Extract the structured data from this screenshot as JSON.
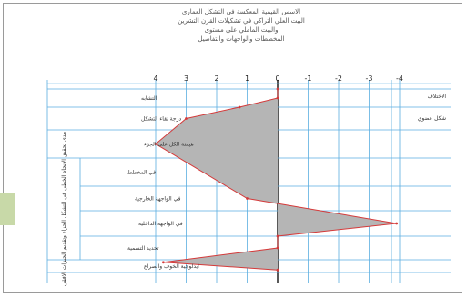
{
  "header": {
    "lines": [
      "الاسس القيمية المعكسة في التشكل العماري",
      "البيت العلي التراكي في تشكيلات القرن التشرين",
      "والبيت الماملي على مستوى",
      "المخططات والواجهات والتفاصيل"
    ]
  },
  "chart_data": {
    "type": "area",
    "title": "",
    "x_ticks": [
      "4",
      "3",
      "2",
      "1",
      "0",
      "-1",
      "-2",
      "-3",
      "-4"
    ],
    "xlim": [
      4,
      -4
    ],
    "side_labels": {
      "header_right": "الاختلاف",
      "row_right": "شكل عضوي"
    },
    "categories": [
      "التشابه",
      "درجة نقاء التشكل",
      "هيمنة الكل على الجزء",
      "في المخطط",
      "في الواجهة الخارجية",
      "في الواجهة الداخلية",
      "تحديد التسمية",
      "ايدلوجية الخوف والصراع"
    ],
    "group_label": "مدى تحقيق الانجاه الخطي في التشكل الجزاء وتقديم الحيزات الافقي",
    "colors": {
      "fill": "#b5b5b5",
      "line": "#d43a3a",
      "grid": "#5aaee0",
      "axis": "#111111"
    },
    "series": [
      {
        "points": [
          {
            "value": 0,
            "row": 0.0
          },
          {
            "value": 0,
            "row": 0.5
          },
          {
            "value": 1.25,
            "row": 1.0
          },
          {
            "value": 3.0,
            "row": 1.5
          },
          {
            "value": 4.0,
            "row": 2.5
          },
          {
            "value": 1.0,
            "row": 4.5
          },
          {
            "value": -3.9,
            "row": 5.5
          },
          {
            "value": 0,
            "row": 6.0
          },
          {
            "value": 0,
            "row": 6.5
          },
          {
            "value": 3.75,
            "row": 7.2
          },
          {
            "value": 0,
            "row": 7.8
          }
        ]
      }
    ]
  }
}
